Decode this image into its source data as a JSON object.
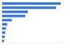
{
  "chart_data": {
    "type": "bar",
    "orientation": "horizontal",
    "categories": [
      null,
      null,
      null,
      null,
      null,
      null,
      null,
      null,
      null,
      null
    ],
    "values": [
      91,
      84,
      40,
      36,
      15,
      8,
      6,
      5,
      4,
      3
    ],
    "color": "#3c78d8",
    "xlim": [
      0,
      100
    ],
    "tick_labels": false
  }
}
